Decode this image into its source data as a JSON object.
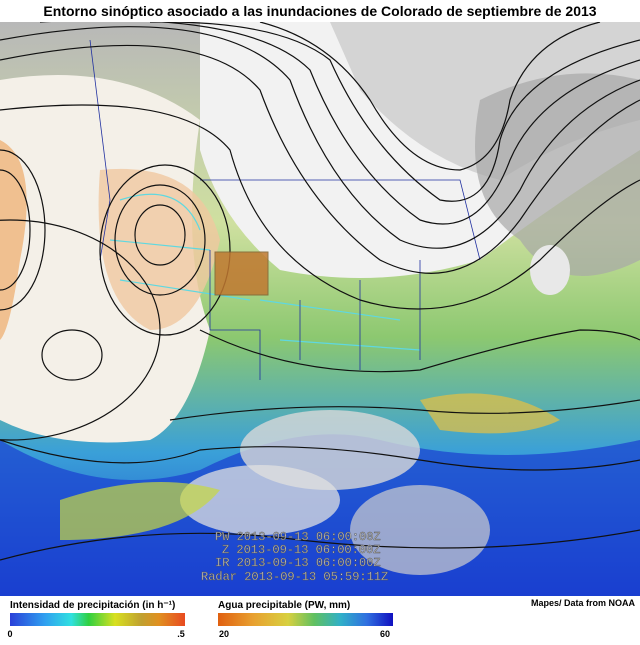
{
  "header": {
    "title": "Entorno sinóptico asociado a las inundaciones de Colorado de septiembre de 2013"
  },
  "map": {
    "timestamps": [
      "PW 2013-09-13 06:00:00Z",
      "Z 2013-09-13 06:00:00Z",
      "IR 2013-09-13 06:00:00Z",
      "Radar 2013-09-13 05:59:11Z"
    ]
  },
  "legend": {
    "precipitation": {
      "title": "Intensidad de precipitación (in h⁻¹)",
      "min_label": "0",
      "max_label": ".5"
    },
    "precipitable_water": {
      "title": "Agua precipitable (PW, mm)",
      "min_label": "20",
      "max_label": "60"
    }
  },
  "credit": "Mapes/ Data from NOAA"
}
